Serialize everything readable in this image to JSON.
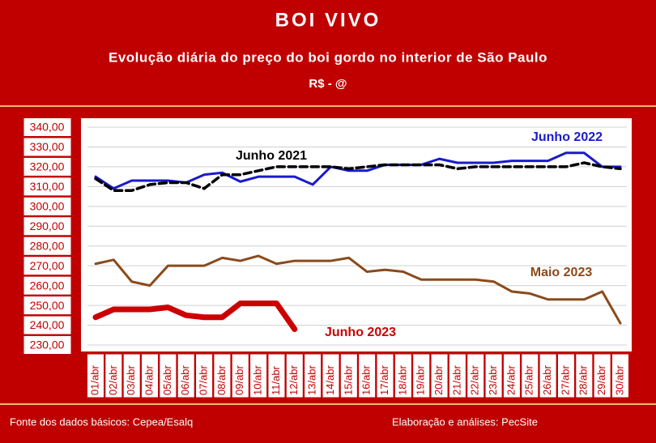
{
  "chart_data": {
    "type": "line",
    "title": "BOI VIVO",
    "subtitle": "Evolução diária do preço do boi gordo no interior de São Paulo",
    "y_label": "R$ - @",
    "source": "Fonte dos dados básicos: Cepea/Esalq",
    "credit": "Elaboração e análises: PecSite",
    "categories": [
      "01/abr",
      "02/abr",
      "03/abr",
      "04/abr",
      "05/abr",
      "06/abr",
      "07/abr",
      "08/abr",
      "09/abr",
      "10/abr",
      "11/abr",
      "12/abr",
      "13/abr",
      "14/abr",
      "15/abr",
      "16/abr",
      "17/abr",
      "18/abr",
      "19/abr",
      "20/abr",
      "21/abr",
      "22/abr",
      "23/abr",
      "24/abr",
      "25/abr",
      "26/abr",
      "27/abr",
      "28/abr",
      "29/abr",
      "30/abr"
    ],
    "series": [
      {
        "name": "Junho 2022",
        "color": "#1a1acc",
        "values": [
          315,
          309,
          313,
          313,
          313,
          312,
          316,
          317,
          312.5,
          315,
          315,
          315,
          311,
          320,
          318,
          318,
          321,
          321,
          321,
          324,
          322,
          322,
          322,
          323,
          323,
          323,
          327,
          327,
          320,
          320
        ]
      },
      {
        "name": "Junho 2021",
        "color": "#000000",
        "dashed": true,
        "values": [
          314,
          308,
          308,
          311,
          312,
          312,
          309,
          316,
          316,
          318,
          320,
          320,
          320,
          320,
          319,
          320,
          321,
          321,
          321,
          321,
          319,
          320,
          320,
          320,
          320,
          320,
          320,
          322,
          320,
          319
        ]
      },
      {
        "name": "Maio 2023",
        "color": "#8b4a1a",
        "values": [
          271,
          273,
          262,
          260,
          270,
          270,
          270,
          274,
          272.5,
          275,
          271,
          272.5,
          272.5,
          272.5,
          274,
          267,
          268,
          267,
          263,
          263,
          263,
          263,
          262,
          257,
          256,
          253,
          253,
          253,
          257,
          241
        ]
      },
      {
        "name": "Junho 2023",
        "color": "#cc0000",
        "values": [
          244,
          248,
          248,
          248,
          249,
          245,
          244,
          244,
          251,
          251,
          251,
          238,
          null,
          null,
          null,
          null,
          null,
          null,
          null,
          null,
          null,
          null,
          null,
          null,
          null,
          null,
          null,
          null,
          null,
          null
        ]
      }
    ],
    "ylim": [
      230,
      340
    ],
    "yticks": [
      {
        "value": 230,
        "label": "230,00"
      },
      {
        "value": 240,
        "label": "240,00"
      },
      {
        "value": 250,
        "label": "250,00"
      },
      {
        "value": 260,
        "label": "260,00"
      },
      {
        "value": 270,
        "label": "270,00"
      },
      {
        "value": 280,
        "label": "280,00"
      },
      {
        "value": 290,
        "label": "290,00"
      },
      {
        "value": 300,
        "label": "300,00"
      },
      {
        "value": 310,
        "label": "310,00"
      },
      {
        "value": 320,
        "label": "320,00"
      },
      {
        "value": 330,
        "label": "330,00"
      },
      {
        "value": 340,
        "label": "340,00"
      }
    ],
    "grid": true
  }
}
